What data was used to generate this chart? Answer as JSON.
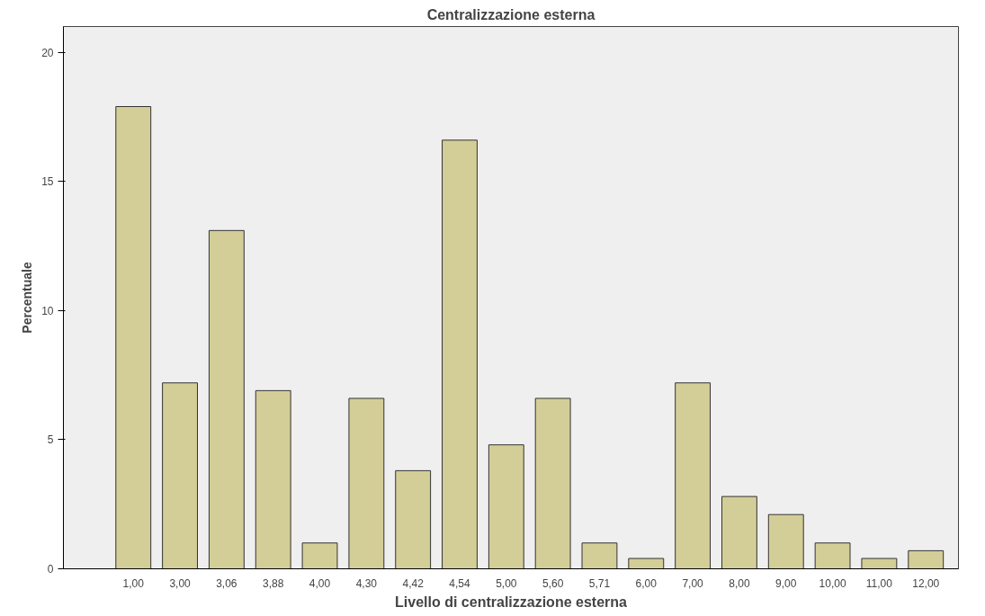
{
  "chart_data": {
    "type": "bar",
    "title": "Centralizzazione esterna",
    "xlabel": "Livello di centralizzazione esterna",
    "ylabel": "Percentuale",
    "categories": [
      "1,00",
      "3,00",
      "3,06",
      "3,88",
      "4,00",
      "4,30",
      "4,42",
      "4,54",
      "5,00",
      "5,60",
      "5,71",
      "6,00",
      "7,00",
      "8,00",
      "9,00",
      "10,00",
      "11,00",
      "12,00"
    ],
    "values": [
      17.9,
      7.2,
      13.1,
      6.9,
      1.0,
      6.6,
      3.8,
      16.6,
      4.8,
      6.6,
      1.0,
      0.4,
      7.2,
      2.8,
      2.1,
      1.0,
      0.4,
      0.7
    ],
    "color": "#d3ce97",
    "ylim": [
      0,
      21
    ],
    "yticks": [
      0,
      5,
      10,
      15,
      20
    ],
    "grid": false
  }
}
